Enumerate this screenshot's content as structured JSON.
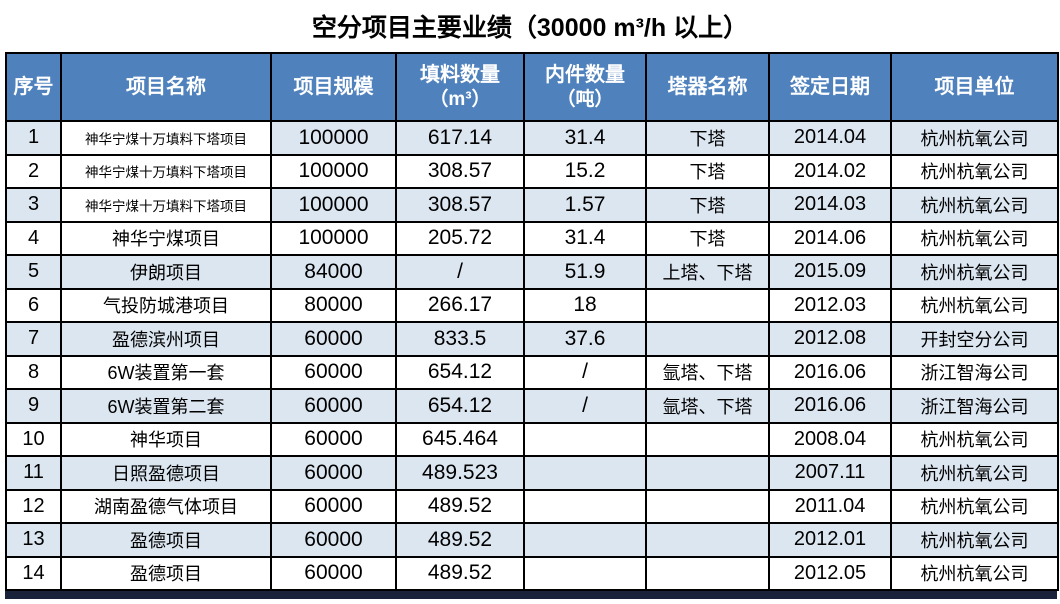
{
  "title": "空分项目主要业绩（30000 m³/h 以上）",
  "table": {
    "columns": [
      {
        "id": "index",
        "label": "序号",
        "sub": ""
      },
      {
        "id": "project-name",
        "label": "项目名称",
        "sub": ""
      },
      {
        "id": "scale",
        "label": "项目规模",
        "sub": ""
      },
      {
        "id": "packing-qty",
        "label": "填料数量",
        "sub": "（m³）"
      },
      {
        "id": "internals-qty",
        "label": "内件数量",
        "sub": "（吨）"
      },
      {
        "id": "tower-name",
        "label": "塔器名称",
        "sub": ""
      },
      {
        "id": "sign-date",
        "label": "签定日期",
        "sub": ""
      },
      {
        "id": "project-unit",
        "label": "项目单位",
        "sub": ""
      }
    ],
    "rows": [
      [
        "1",
        "神华宁煤十万填料下塔项目",
        "100000",
        "617.14",
        "31.4",
        "下塔",
        "2014.04",
        "杭州杭氧公司"
      ],
      [
        "2",
        "神华宁煤十万填料下塔项目",
        "100000",
        "308.57",
        "15.2",
        "下塔",
        "2014.02",
        "杭州杭氧公司"
      ],
      [
        "3",
        "神华宁煤十万填料下塔项目",
        "100000",
        "308.57",
        "1.57",
        "下塔",
        "2014.03",
        "杭州杭氧公司"
      ],
      [
        "4",
        "神华宁煤项目",
        "100000",
        "205.72",
        "31.4",
        "下塔",
        "2014.06",
        "杭州杭氧公司"
      ],
      [
        "5",
        "伊朗项目",
        "84000",
        "/",
        "51.9",
        "上塔、下塔",
        "2015.09",
        "杭州杭氧公司"
      ],
      [
        "6",
        "气投防城港项目",
        "80000",
        "266.17",
        "18",
        "",
        "2012.03",
        "杭州杭氧公司"
      ],
      [
        "7",
        "盈德滨州项目",
        "60000",
        "833.5",
        "37.6",
        "",
        "2012.08",
        "开封空分公司"
      ],
      [
        "8",
        "6W装置第一套",
        "60000",
        "654.12",
        "/",
        "氩塔、下塔",
        "2016.06",
        "浙江智海公司"
      ],
      [
        "9",
        "6W装置第二套",
        "60000",
        "654.12",
        "/",
        "氩塔、下塔",
        "2016.06",
        "浙江智海公司"
      ],
      [
        "10",
        "神华项目",
        "60000",
        "645.464",
        "",
        "",
        "2008.04",
        "杭州杭氧公司"
      ],
      [
        "11",
        "日照盈德项目",
        "60000",
        "489.523",
        "",
        "",
        "2007.11",
        "杭州杭氧公司"
      ],
      [
        "12",
        "湖南盈德气体项目",
        "60000",
        "489.52",
        "",
        "",
        "2011.04",
        "杭州杭氧公司"
      ],
      [
        "13",
        "盈德项目",
        "60000",
        "489.52",
        "",
        "",
        "2012.01",
        "杭州杭氧公司"
      ],
      [
        "14",
        "盈德项目",
        "60000",
        "489.52",
        "",
        "",
        "2012.05",
        "杭州杭氧公司"
      ]
    ]
  },
  "colors": {
    "header_bg": "#4f81bd",
    "band_bg": "#dce6f1",
    "border": "#000000",
    "header_text": "#ffffff",
    "body_text": "#000000",
    "bottom_strip": "#18223a"
  }
}
